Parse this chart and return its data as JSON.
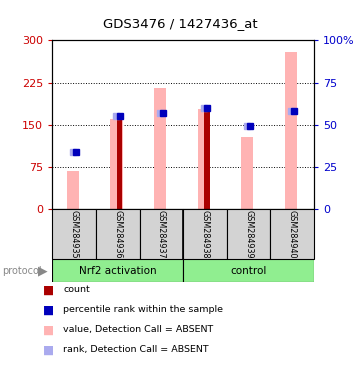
{
  "title": "GDS3476 / 1427436_at",
  "samples": [
    "GSM284935",
    "GSM284936",
    "GSM284937",
    "GSM284938",
    "GSM284939",
    "GSM284940"
  ],
  "red_bars": [
    0,
    160,
    0,
    178,
    0,
    0
  ],
  "pink_bars": [
    68,
    160,
    215,
    178,
    128,
    280
  ],
  "blue_squares_y": [
    102,
    165,
    171,
    180,
    148,
    175
  ],
  "lightblue_squares_y": [
    102,
    165,
    171,
    180,
    148,
    175
  ],
  "ylim_left": [
    0,
    300
  ],
  "ylim_right": [
    0,
    100
  ],
  "yticks_left": [
    0,
    75,
    150,
    225,
    300
  ],
  "yticks_right": [
    0,
    25,
    50,
    75,
    100
  ],
  "ytick_right_labels": [
    "0",
    "25",
    "50",
    "75",
    "100%"
  ],
  "ylabel_left_color": "#cc0000",
  "ylabel_right_color": "#0000cc",
  "red_color": "#aa0000",
  "pink_color": "#ffb3b3",
  "blue_color": "#0000bb",
  "lightblue_color": "#aaaaee",
  "bg_plot": "#ffffff",
  "bg_sample": "#d3d3d3",
  "bg_group": "#90ee90",
  "legend_items": [
    {
      "label": "count",
      "color": "#aa0000"
    },
    {
      "label": "percentile rank within the sample",
      "color": "#0000bb"
    },
    {
      "label": "value, Detection Call = ABSENT",
      "color": "#ffb3b3"
    },
    {
      "label": "rank, Detection Call = ABSENT",
      "color": "#aaaaee"
    }
  ],
  "nrf2_samples": 3,
  "total_samples": 6,
  "group1_label": "Nrf2 activation",
  "group2_label": "control",
  "protocol_label": "protocol"
}
